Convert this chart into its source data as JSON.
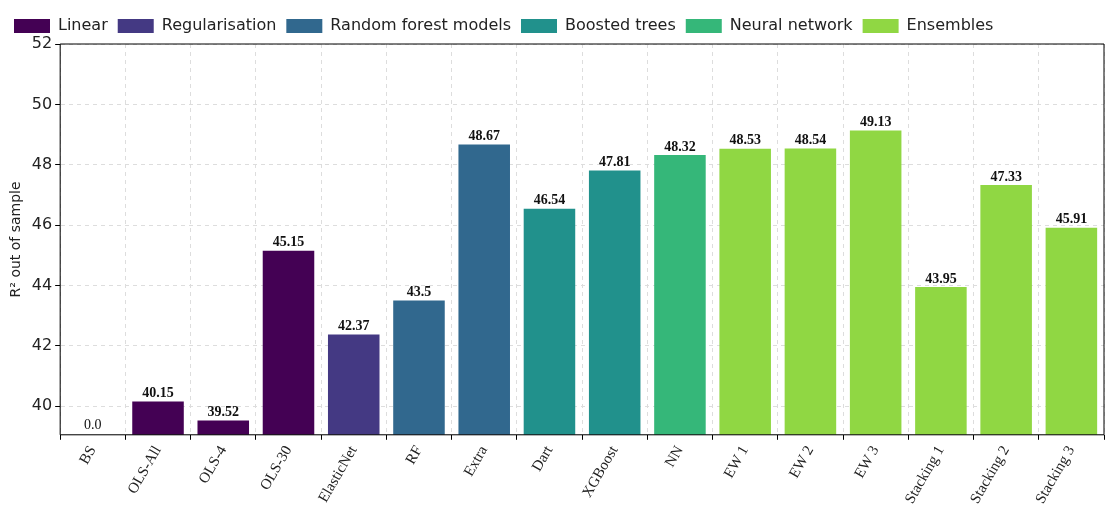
{
  "chart_data": {
    "type": "bar",
    "ylabel": "R² out of sample",
    "categories": [
      "BS",
      "OLS-All",
      "OLS-4",
      "OLS-30",
      "ElasticNet",
      "RF",
      "Extra",
      "Dart",
      "XGBoost",
      "NN",
      "EW 1",
      "EW 2",
      "EW 3",
      "Stacking 1",
      "Stacking 2",
      "Stacking 3"
    ],
    "series": [
      {
        "name": "Linear",
        "color": "#440154",
        "values": [
          null,
          40.15,
          39.52,
          45.15,
          null,
          null,
          null,
          null,
          null,
          null,
          null,
          null,
          null,
          null,
          null,
          null
        ],
        "value_labels": [
          "0.0",
          "40.15",
          "39.52",
          "45.15",
          null,
          null,
          null,
          null,
          null,
          null,
          null,
          null,
          null,
          null,
          null,
          null
        ]
      },
      {
        "name": "Regularisation",
        "color": "#443983",
        "values": [
          null,
          null,
          null,
          null,
          42.37,
          null,
          null,
          null,
          null,
          null,
          null,
          null,
          null,
          null,
          null,
          null
        ],
        "value_labels": [
          null,
          null,
          null,
          null,
          "42.37",
          null,
          null,
          null,
          null,
          null,
          null,
          null,
          null,
          null,
          null,
          null
        ]
      },
      {
        "name": "Random forest models",
        "color": "#31688e",
        "values": [
          null,
          null,
          null,
          null,
          null,
          43.5,
          48.67,
          null,
          null,
          null,
          null,
          null,
          null,
          null,
          null,
          null
        ],
        "value_labels": [
          null,
          null,
          null,
          null,
          null,
          "43.5",
          "48.67",
          null,
          null,
          null,
          null,
          null,
          null,
          null,
          null,
          null
        ]
      },
      {
        "name": "Boosted trees",
        "color": "#21918c",
        "values": [
          null,
          null,
          null,
          null,
          null,
          null,
          null,
          46.54,
          47.81,
          null,
          null,
          null,
          null,
          null,
          null,
          null
        ],
        "value_labels": [
          null,
          null,
          null,
          null,
          null,
          null,
          null,
          "46.54",
          "47.81",
          null,
          null,
          null,
          null,
          null,
          null,
          null
        ]
      },
      {
        "name": "Neural network",
        "color": "#35b779",
        "values": [
          null,
          null,
          null,
          null,
          null,
          null,
          null,
          null,
          null,
          48.32,
          null,
          null,
          null,
          null,
          null,
          null
        ],
        "value_labels": [
          null,
          null,
          null,
          null,
          null,
          null,
          null,
          null,
          null,
          "48.32",
          null,
          null,
          null,
          null,
          null,
          null
        ]
      },
      {
        "name": "Ensembles",
        "color": "#90d743",
        "values": [
          null,
          null,
          null,
          null,
          null,
          null,
          null,
          null,
          null,
          null,
          48.53,
          48.54,
          49.13,
          43.95,
          47.33,
          45.91
        ],
        "value_labels": [
          null,
          null,
          null,
          null,
          null,
          null,
          null,
          null,
          null,
          null,
          "48.53",
          "48.54",
          "49.13",
          "43.95",
          "47.33",
          "45.91"
        ]
      }
    ],
    "ylim": [
      39.05,
      52
    ],
    "yticks": [
      40,
      42,
      44,
      46,
      48,
      50,
      52
    ],
    "grid": true,
    "legend": "top left"
  }
}
